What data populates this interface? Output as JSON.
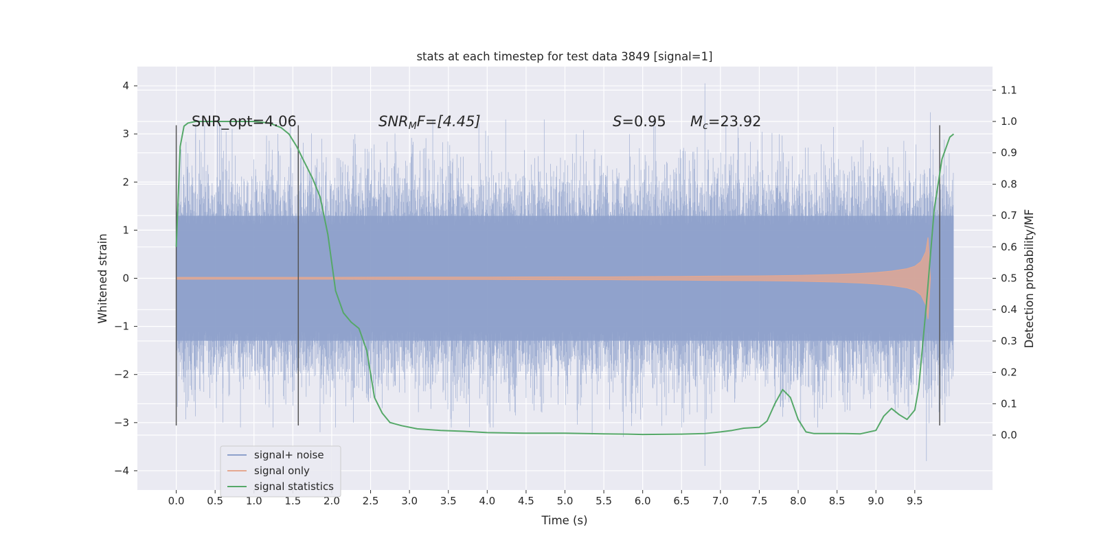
{
  "chart_data": {
    "type": "line",
    "title": "stats at each timestep for test data 3849 [signal=1]",
    "xlabel": "Time (s)",
    "ylabel": "Whitened strain",
    "y2label": "Detection probability/MF",
    "xlim": [
      -0.5,
      10.5
    ],
    "ylim": [
      -4.4,
      4.4
    ],
    "y2lim": [
      -0.175,
      1.175
    ],
    "xticks": [
      "0.0",
      "0.5",
      "1.0",
      "1.5",
      "2.0",
      "2.5",
      "3.0",
      "3.5",
      "4.0",
      "4.5",
      "5.0",
      "5.5",
      "6.0",
      "6.5",
      "7.0",
      "7.5",
      "8.0",
      "8.5",
      "9.0",
      "9.5"
    ],
    "yticks": [
      "4",
      "3",
      "2",
      "1",
      "0",
      "−1",
      "−2",
      "−3",
      "−4"
    ],
    "y2ticks": [
      "1.1",
      "1.0",
      "0.9",
      "0.8",
      "0.7",
      "0.6",
      "0.5",
      "0.4",
      "0.3",
      "0.2",
      "0.1",
      "0.0"
    ],
    "grid": true,
    "legend_position": "lower-left",
    "annotations": {
      "snr_opt": "SNR_opt=4.06",
      "snr_mf_sym": "SNR",
      "snr_mf_sub": "M",
      "snr_mf_rest": "F=[4.45]",
      "s_sym": "S",
      "s_val": "=0.95",
      "mc_sym": "M",
      "mc_sub": "c",
      "mc_val": "=23.92"
    },
    "vertical_markers": [
      0.0,
      1.57,
      9.82
    ],
    "series": [
      {
        "name": "signal+ noise",
        "color": "#8da0cb",
        "x_range": [
          0.0,
          10.0
        ],
        "core_band": [
          -1.3,
          1.3
        ],
        "envelope_peaks": [
          {
            "x": 0.15,
            "y": 2.6
          },
          {
            "x": 0.25,
            "y": 3.2
          },
          {
            "x": 0.6,
            "y": -3.0
          },
          {
            "x": 1.85,
            "y": -3.2
          },
          {
            "x": 2.05,
            "y": -3.1
          },
          {
            "x": 5.35,
            "y": -3.25
          },
          {
            "x": 5.75,
            "y": -3.3
          },
          {
            "x": 6.5,
            "y": -3.1
          },
          {
            "x": 6.8,
            "y": 4.05
          },
          {
            "x": 6.8,
            "y": -3.9
          },
          {
            "x": 8.25,
            "y": -3.1
          },
          {
            "x": 9.7,
            "y": 3.45
          },
          {
            "x": 9.65,
            "y": -3.8
          }
        ]
      },
      {
        "name": "signal only",
        "color": "#e5a890",
        "x": [
          0.0,
          1.0,
          2.0,
          3.0,
          4.0,
          5.0,
          5.5,
          6.0,
          6.5,
          7.0,
          7.5,
          8.0,
          8.5,
          8.8,
          9.0,
          9.2,
          9.4,
          9.5,
          9.58,
          9.64,
          9.67,
          9.7
        ],
        "amplitude": [
          0.02,
          0.02,
          0.02,
          0.025,
          0.025,
          0.03,
          0.03,
          0.035,
          0.04,
          0.045,
          0.05,
          0.06,
          0.08,
          0.1,
          0.12,
          0.15,
          0.2,
          0.25,
          0.35,
          0.55,
          0.85,
          0.02
        ]
      },
      {
        "name": "signal statistics",
        "color": "#55a868",
        "x": [
          0.0,
          0.05,
          0.1,
          0.15,
          0.25,
          0.5,
          0.8,
          1.0,
          1.2,
          1.35,
          1.45,
          1.55,
          1.65,
          1.75,
          1.85,
          1.95,
          2.05,
          2.15,
          2.25,
          2.35,
          2.45,
          2.55,
          2.65,
          2.75,
          2.9,
          3.1,
          3.4,
          3.7,
          4.0,
          4.5,
          5.0,
          5.5,
          5.8,
          6.0,
          6.5,
          6.8,
          7.0,
          7.15,
          7.3,
          7.5,
          7.6,
          7.7,
          7.8,
          7.9,
          8.0,
          8.1,
          8.2,
          8.4,
          8.6,
          8.8,
          9.0,
          9.1,
          9.2,
          9.3,
          9.4,
          9.5,
          9.55,
          9.65,
          9.75,
          9.85,
          9.95,
          10.0
        ],
        "y": [
          0.6,
          0.92,
          0.985,
          0.995,
          1.0,
          1.0,
          1.0,
          1.0,
          0.995,
          0.98,
          0.96,
          0.92,
          0.87,
          0.82,
          0.76,
          0.64,
          0.46,
          0.39,
          0.36,
          0.34,
          0.27,
          0.12,
          0.07,
          0.04,
          0.03,
          0.02,
          0.015,
          0.012,
          0.008,
          0.006,
          0.006,
          0.004,
          0.003,
          0.002,
          0.003,
          0.005,
          0.01,
          0.015,
          0.022,
          0.025,
          0.045,
          0.1,
          0.145,
          0.12,
          0.05,
          0.01,
          0.005,
          0.005,
          0.005,
          0.004,
          0.015,
          0.06,
          0.085,
          0.065,
          0.05,
          0.08,
          0.15,
          0.42,
          0.72,
          0.88,
          0.95,
          0.96
        ]
      }
    ]
  }
}
